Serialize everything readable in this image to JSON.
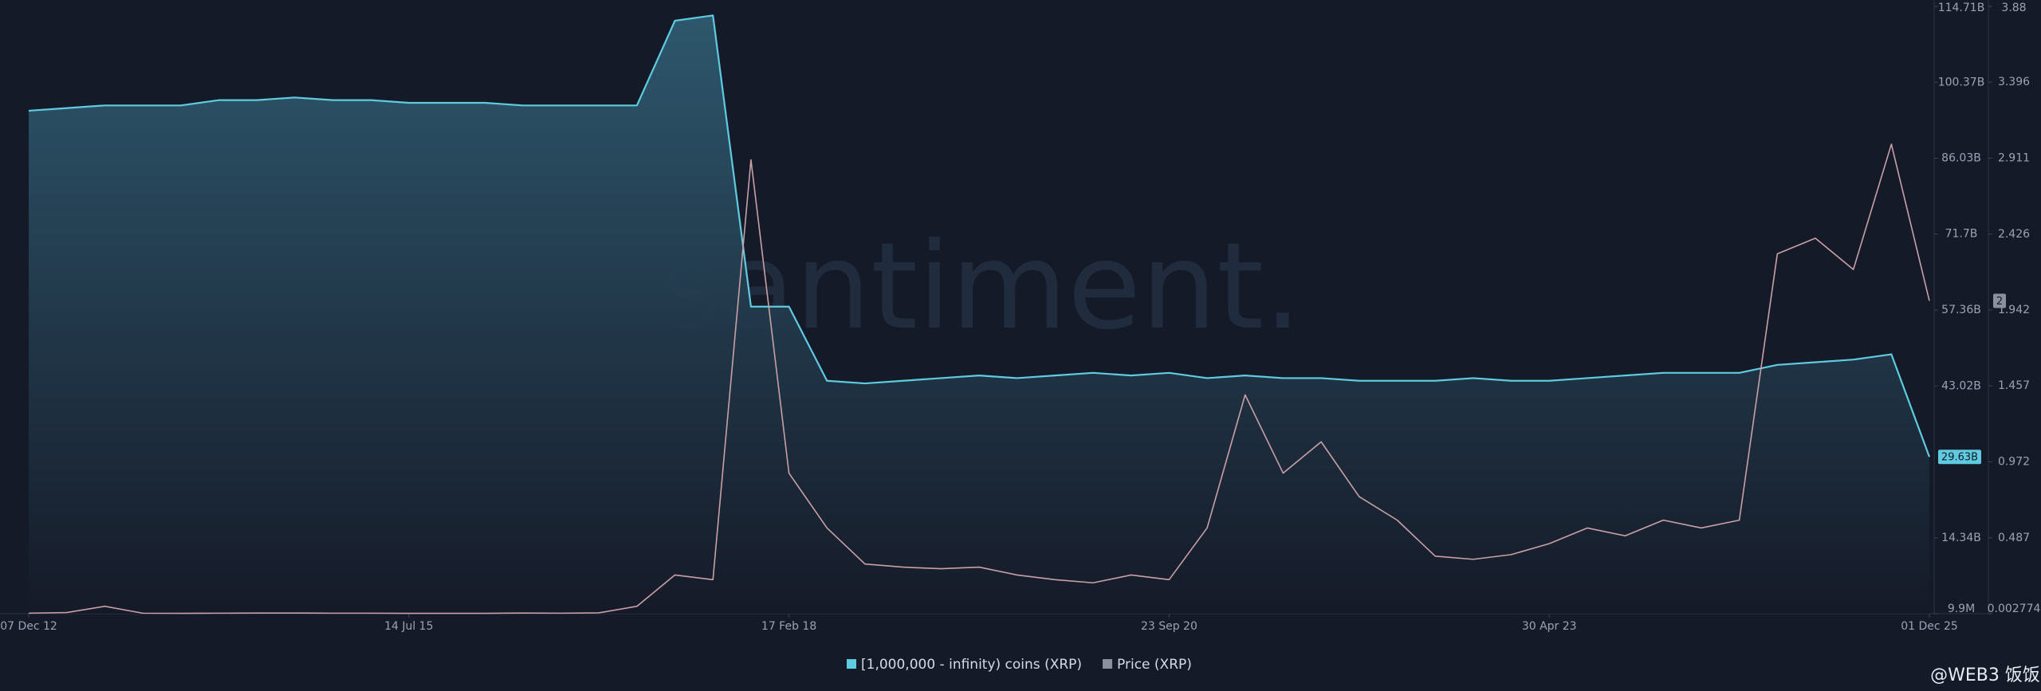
{
  "chart_data": {
    "type": "line",
    "watermark": "santiment.",
    "categories": [
      "07 Dec 12",
      null,
      null,
      null,
      null,
      null,
      null,
      null,
      null,
      null,
      "14 Jul 15",
      null,
      null,
      null,
      null,
      null,
      null,
      null,
      null,
      null,
      "17 Feb 18",
      null,
      null,
      null,
      null,
      null,
      null,
      null,
      null,
      null,
      "23 Sep 20",
      null,
      null,
      null,
      null,
      null,
      null,
      null,
      null,
      null,
      "30 Apr 23",
      null,
      null,
      null,
      null,
      null,
      null,
      null,
      null,
      null,
      "01 Dec 25"
    ],
    "series": [
      {
        "name": "[1,000,000 - infinity) coins (XRP)",
        "color": "#5fcbe0",
        "axis": "y",
        "values": [
          95000000000,
          95500000000,
          96000000000,
          96000000000,
          96000000000,
          97000000000,
          97000000000,
          97500000000,
          97000000000,
          97000000000,
          96500000000,
          96500000000,
          96500000000,
          96000000000,
          96000000000,
          96000000000,
          96000000000,
          112000000000,
          113000000000,
          58000000000,
          58000000000,
          44000000000,
          43500000000,
          44000000000,
          44500000000,
          45000000000,
          44500000000,
          45000000000,
          45500000000,
          45000000000,
          45500000000,
          44500000000,
          45000000000,
          44500000000,
          44500000000,
          44000000000,
          44000000000,
          44000000000,
          44500000000,
          44000000000,
          44000000000,
          44500000000,
          45000000000,
          45500000000,
          45500000000,
          45500000000,
          47000000000,
          47500000000,
          48000000000,
          49000000000,
          29630000000
        ]
      },
      {
        "name": "Price (XRP)",
        "color": "#c9a0a6",
        "axis": "y2",
        "values": [
          0.006,
          0.01,
          0.05,
          0.006,
          0.005,
          0.006,
          0.007,
          0.007,
          0.006,
          0.006,
          0.005,
          0.005,
          0.005,
          0.007,
          0.006,
          0.008,
          0.05,
          0.25,
          0.22,
          2.9,
          0.9,
          0.55,
          0.32,
          0.3,
          0.29,
          0.3,
          0.25,
          0.22,
          0.2,
          0.25,
          0.22,
          0.55,
          1.4,
          0.9,
          1.1,
          0.75,
          0.6,
          0.37,
          0.35,
          0.38,
          0.45,
          0.55,
          0.5,
          0.6,
          0.55,
          0.6,
          2.3,
          2.4,
          2.2,
          3.0,
          2.0
        ]
      }
    ],
    "ylim": [
      9900000,
      114710000000
    ],
    "yticks": [
      {
        "value": 9900000,
        "label": "9.9M"
      },
      {
        "value": 14340000000,
        "label": "14.34B"
      },
      {
        "value": 43020000000,
        "label": "43.02B"
      },
      {
        "value": 57360000000,
        "label": "57.36B"
      },
      {
        "value": 71700000000,
        "label": "71.7B"
      },
      {
        "value": 86030000000,
        "label": "86.03B"
      },
      {
        "value": 100370000000,
        "label": "100.37B"
      },
      {
        "value": 114710000000,
        "label": "114.71B"
      }
    ],
    "y2lim": [
      0.002774,
      3.88
    ],
    "y2ticks": [
      0.002774,
      0.487,
      0.972,
      1.457,
      1.942,
      2.426,
      2.911,
      3.396,
      3.88
    ],
    "annotations": [
      {
        "value": 29630000000,
        "label": "29.63B",
        "axis": "y"
      },
      {
        "value": 2,
        "label": "2",
        "axis": "y2"
      }
    ],
    "footer_brand": "@WEB3 饭饭"
  }
}
